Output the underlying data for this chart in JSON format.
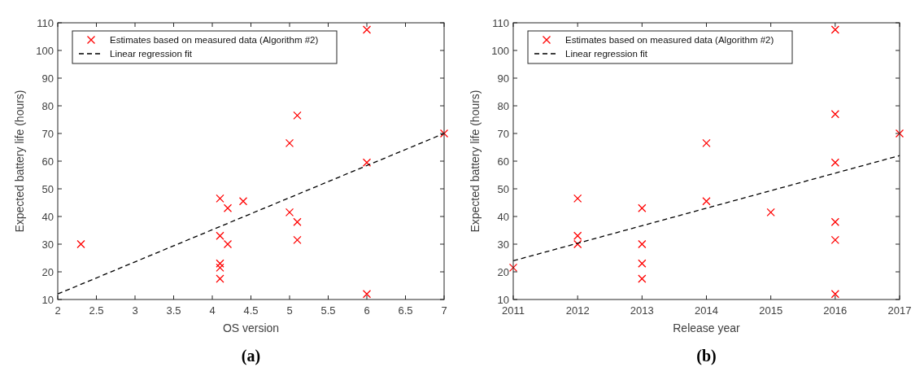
{
  "chart_data": [
    {
      "type": "scatter",
      "xlabel": "OS version",
      "ylabel": "Expected battery life (hours)",
      "annotations": [
        "(a)"
      ],
      "xlim": [
        2,
        7
      ],
      "xticks": [
        2,
        2.5,
        3,
        3.5,
        4,
        4.5,
        5,
        5.5,
        6,
        6.5,
        7
      ],
      "ylim": [
        10,
        110
      ],
      "yticks": [
        10,
        20,
        30,
        40,
        50,
        60,
        70,
        80,
        90,
        100,
        110
      ],
      "grid": false,
      "legend": "top left",
      "series": [
        {
          "name": "Estimates based on measured data (Algorithm #2)",
          "color": "#ff0000",
          "marker": "cross",
          "x": [
            2.3,
            4.1,
            4.1,
            4.1,
            4.1,
            4.1,
            4.2,
            4.2,
            4.4,
            5,
            5,
            5.1,
            5.1,
            5.1,
            6,
            6,
            6,
            7
          ],
          "values": [
            30,
            46.5,
            33,
            23,
            21.5,
            17.5,
            43,
            30,
            45.5,
            66.5,
            41.5,
            76.5,
            38,
            31.5,
            107.5,
            59.5,
            12,
            70
          ]
        },
        {
          "name": "Linear regression fit",
          "type": "line",
          "color": "#000000",
          "line_style": "dashed",
          "marker": "none",
          "x": [
            2,
            7
          ],
          "values": [
            12,
            70
          ]
        }
      ]
    },
    {
      "type": "scatter",
      "xlabel": "Release year",
      "ylabel": "Expected battery life (hours)",
      "annotations": [
        "(b)"
      ],
      "xlim": [
        2011,
        2017
      ],
      "xticks": [
        2011,
        2012,
        2013,
        2014,
        2015,
        2016,
        2017
      ],
      "ylim": [
        10,
        110
      ],
      "yticks": [
        10,
        20,
        30,
        40,
        50,
        60,
        70,
        80,
        90,
        100,
        110
      ],
      "grid": false,
      "legend": "top left",
      "series": [
        {
          "name": "Estimates based on measured data (Algorithm #2)",
          "color": "#ff0000",
          "marker": "cross",
          "x": [
            2011,
            2012,
            2012,
            2012,
            2013,
            2013,
            2013,
            2013,
            2014,
            2014,
            2015,
            2016,
            2016,
            2016,
            2016,
            2016,
            2016,
            2017
          ],
          "values": [
            21.5,
            46.5,
            33,
            30,
            43,
            30,
            23,
            17.5,
            66.5,
            45.5,
            41.5,
            107.5,
            77,
            59.5,
            38,
            31.5,
            12,
            70
          ]
        },
        {
          "name": "Linear regression fit",
          "type": "line",
          "color": "#000000",
          "line_style": "dashed",
          "marker": "none",
          "x": [
            2011,
            2017
          ],
          "values": [
            24,
            62
          ]
        }
      ]
    }
  ]
}
